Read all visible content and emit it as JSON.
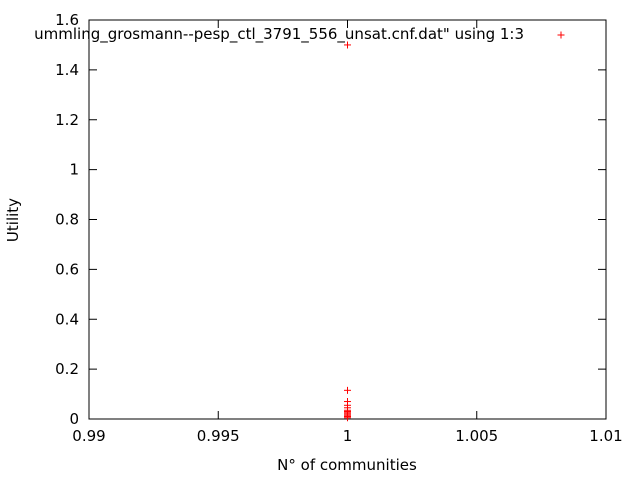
{
  "chart_data": {
    "type": "scatter",
    "title": "",
    "xlabel": "N° of communities",
    "ylabel": "Utility",
    "xlim": [
      0.99,
      1.01
    ],
    "ylim": [
      0,
      1.6
    ],
    "xticks": [
      "0.99",
      "0.995",
      "1",
      "1.005",
      "1.01"
    ],
    "yticks": [
      "0",
      "0.2",
      "0.4",
      "0.6",
      "0.8",
      "1",
      "1.2",
      "1.4",
      "1.6"
    ],
    "grid": false,
    "legend_position": "top-right",
    "series": [
      {
        "name": "ummling_grosmann--pesp_ctl_3791_556_unsat.cnf.dat\" using 1:3",
        "color": "#ff0000",
        "marker": "plus",
        "points": [
          {
            "x": 1,
            "y": 1.5
          },
          {
            "x": 1,
            "y": 0.115
          },
          {
            "x": 1,
            "y": 0.07
          },
          {
            "x": 1,
            "y": 0.055
          },
          {
            "x": 1,
            "y": 0.045
          },
          {
            "x": 1,
            "y": 0.035
          },
          {
            "x": 1,
            "y": 0.03
          },
          {
            "x": 1,
            "y": 0.025
          },
          {
            "x": 1,
            "y": 0.02
          },
          {
            "x": 1,
            "y": 0.015
          },
          {
            "x": 1,
            "y": 0.01
          },
          {
            "x": 1,
            "y": 0.005
          }
        ]
      }
    ]
  }
}
